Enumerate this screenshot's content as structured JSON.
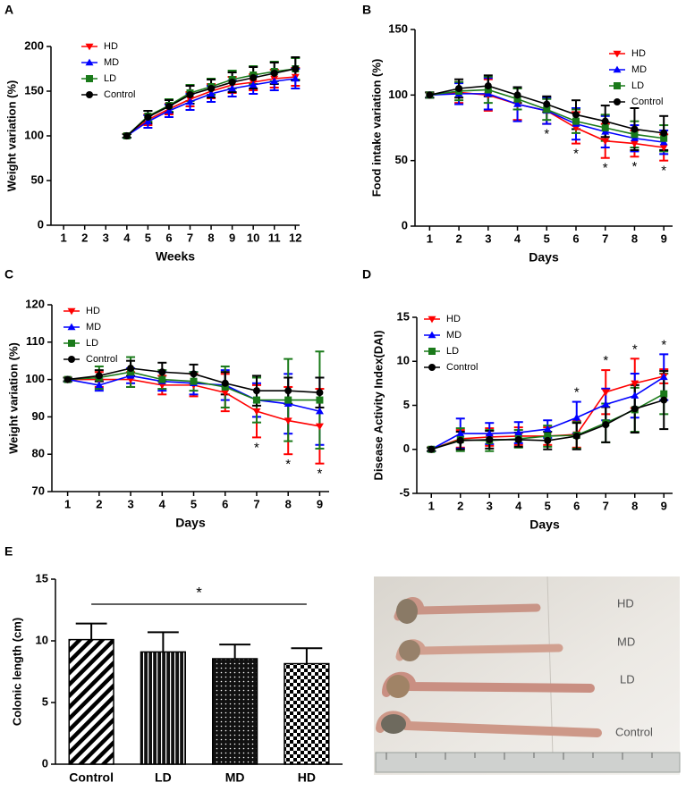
{
  "chart_data": [
    {
      "type": "line",
      "panel": "A",
      "x_label": "Weeks",
      "y_label": "Weight variation (%)",
      "x": [
        4,
        5,
        6,
        7,
        8,
        9,
        10,
        11,
        12
      ],
      "xlim": [
        0.4,
        12.2
      ],
      "xticks": [
        1,
        2,
        3,
        4,
        5,
        6,
        7,
        8,
        9,
        10,
        11,
        12
      ],
      "ylim": [
        0,
        200
      ],
      "yticks": [
        0,
        50,
        100,
        150,
        200
      ],
      "legend": "upper left",
      "series": [
        {
          "name": "HD",
          "color": "#ff0000",
          "marker": "triangle-down",
          "values": [
            100,
            118,
            130,
            141,
            150,
            157,
            160,
            164,
            166
          ],
          "errors": [
            2,
            6,
            6,
            8,
            8,
            9,
            9,
            10,
            10
          ]
        },
        {
          "name": "MD",
          "color": "#0000ff",
          "marker": "triangle-up",
          "values": [
            100,
            116,
            128,
            138,
            147,
            153,
            157,
            161,
            164
          ],
          "errors": [
            2,
            7,
            7,
            9,
            9,
            9,
            10,
            10,
            11
          ]
        },
        {
          "name": "LD",
          "color": "#1a7a1a",
          "marker": "square",
          "values": [
            100,
            122,
            134,
            148,
            155,
            163,
            168,
            172,
            175
          ],
          "errors": [
            2,
            6,
            7,
            9,
            9,
            10,
            10,
            11,
            12
          ]
        },
        {
          "name": "Control",
          "color": "#000000",
          "marker": "circle",
          "values": [
            100,
            121,
            133,
            146,
            153,
            160,
            165,
            170,
            175
          ],
          "errors": [
            2,
            7,
            7,
            10,
            10,
            11,
            12,
            12,
            13
          ]
        }
      ]
    },
    {
      "type": "line",
      "panel": "B",
      "x_label": "Days",
      "y_label": "Food intake variation (%)",
      "x": [
        1,
        2,
        3,
        4,
        5,
        6,
        7,
        8,
        9
      ],
      "xlim": [
        0.5,
        9.3
      ],
      "xticks": [
        1,
        2,
        3,
        4,
        5,
        6,
        7,
        8,
        9
      ],
      "ylim": [
        0,
        150
      ],
      "yticks": [
        0,
        50,
        100,
        150
      ],
      "legend": "upper right",
      "annotation_side": "below",
      "annotations": [
        {
          "x": 5,
          "label": "*"
        },
        {
          "x": 6,
          "label": "*"
        },
        {
          "x": 7,
          "label": "*"
        },
        {
          "x": 8,
          "label": "*"
        },
        {
          "x": 9,
          "label": "*"
        }
      ],
      "series": [
        {
          "name": "HD",
          "color": "#ff0000",
          "marker": "triangle-down",
          "values": [
            100,
            102,
            100,
            93,
            88,
            75,
            65,
            63,
            60
          ],
          "errors": [
            2,
            8,
            12,
            12,
            10,
            12,
            13,
            10,
            10
          ]
        },
        {
          "name": "MD",
          "color": "#0000ff",
          "marker": "triangle-up",
          "values": [
            100,
            101,
            101,
            93,
            88,
            78,
            72,
            67,
            64
          ],
          "errors": [
            2,
            8,
            12,
            13,
            10,
            12,
            12,
            10,
            9
          ]
        },
        {
          "name": "LD",
          "color": "#1a7a1a",
          "marker": "square",
          "values": [
            100,
            103,
            104,
            97,
            89,
            80,
            75,
            70,
            67
          ],
          "errors": [
            2,
            7,
            10,
            8,
            8,
            9,
            10,
            10,
            10
          ]
        },
        {
          "name": "Control",
          "color": "#000000",
          "marker": "circle",
          "values": [
            100,
            105,
            107,
            100,
            93,
            85,
            80,
            74,
            71
          ],
          "errors": [
            2,
            7,
            8,
            6,
            6,
            11,
            12,
            16,
            13
          ]
        }
      ]
    },
    {
      "type": "line",
      "panel": "C",
      "x_label": "Days",
      "y_label": "Weight variation (%)",
      "x": [
        1,
        2,
        3,
        4,
        5,
        6,
        7,
        8,
        9
      ],
      "xlim": [
        0.5,
        9.3
      ],
      "xticks": [
        1,
        2,
        3,
        4,
        5,
        6,
        7,
        8,
        9
      ],
      "ylim": [
        70,
        120
      ],
      "yticks": [
        70,
        80,
        90,
        100,
        110,
        120
      ],
      "legend": "upper left",
      "annotation_side": "below",
      "annotations": [
        {
          "x": 7,
          "label": "*"
        },
        {
          "x": 8,
          "label": "*"
        },
        {
          "x": 9,
          "label": "*"
        }
      ],
      "series": [
        {
          "name": "HD",
          "color": "#ff0000",
          "marker": "triangle-down",
          "values": [
            100,
            100,
            100,
            98.5,
            98.5,
            96.5,
            91.5,
            89,
            87.5
          ],
          "errors": [
            0.5,
            2,
            2,
            2.5,
            3,
            5,
            7,
            9,
            10
          ]
        },
        {
          "name": "MD",
          "color": "#0000ff",
          "marker": "triangle-up",
          "values": [
            100,
            98.5,
            101,
            99.5,
            99,
            98.5,
            94.5,
            93.5,
            91.5
          ],
          "errors": [
            0.5,
            1.5,
            2,
            2.5,
            3,
            4,
            4.5,
            8,
            9
          ]
        },
        {
          "name": "LD",
          "color": "#1a7a1a",
          "marker": "square",
          "values": [
            100,
            100.5,
            102,
            100,
            99.5,
            98,
            94.5,
            94.5,
            94.5
          ],
          "errors": [
            0.5,
            3,
            4,
            2.5,
            2.5,
            5.5,
            6,
            11,
            13
          ]
        },
        {
          "name": "Control",
          "color": "#000000",
          "marker": "circle",
          "values": [
            100,
            101,
            103,
            102,
            101.5,
            99,
            97,
            97,
            96.5
          ],
          "errors": [
            0.5,
            1.5,
            2,
            2.5,
            2.5,
            3,
            4,
            3.5,
            4
          ]
        }
      ]
    },
    {
      "type": "line",
      "panel": "D",
      "x_label": "Days",
      "y_label": "Disease Activity Index(DAI)",
      "x": [
        1,
        2,
        3,
        4,
        5,
        6,
        7,
        8,
        9
      ],
      "xlim": [
        0.5,
        9.3
      ],
      "xticks": [
        1,
        2,
        3,
        4,
        5,
        6,
        7,
        8,
        9
      ],
      "ylim": [
        -5,
        15
      ],
      "yticks": [
        -5,
        0,
        5,
        10,
        15
      ],
      "legend": "upper left",
      "annotation_side": "above",
      "annotations": [
        {
          "x": 6,
          "label": "*"
        },
        {
          "x": 7,
          "label": "*"
        },
        {
          "x": 8,
          "label": "*"
        },
        {
          "x": 9,
          "label": "*"
        }
      ],
      "series": [
        {
          "name": "HD",
          "color": "#ff0000",
          "marker": "triangle-down",
          "values": [
            0,
            1.2,
            1.4,
            1.5,
            1.5,
            1.7,
            6.5,
            7.5,
            8.3
          ],
          "errors": [
            0.2,
            1,
            1,
            1,
            1,
            1.5,
            2.5,
            2.8,
            0.8
          ]
        },
        {
          "name": "MD",
          "color": "#0000ff",
          "marker": "triangle-up",
          "values": [
            0,
            1.8,
            1.8,
            1.9,
            2.3,
            3.6,
            5.1,
            6.1,
            8.2
          ],
          "errors": [
            0.2,
            1.7,
            1.2,
            1.2,
            1,
            1.8,
            1.8,
            2.5,
            2.6
          ]
        },
        {
          "name": "LD",
          "color": "#1a7a1a",
          "marker": "square",
          "values": [
            0,
            1.1,
            1,
            1.2,
            1.5,
            1.6,
            3,
            4.5,
            6.3
          ],
          "errors": [
            0.2,
            1.3,
            1.2,
            1,
            1.2,
            1.5,
            2.2,
            2.5,
            2.3
          ]
        },
        {
          "name": "Control",
          "color": "#000000",
          "marker": "circle",
          "values": [
            0,
            1,
            1.1,
            1.1,
            1,
            1.5,
            2.8,
            4.6,
            5.6
          ],
          "errors": [
            0.2,
            1,
            1,
            0.8,
            1,
            1.5,
            2,
            2.7,
            3.3
          ]
        }
      ]
    },
    {
      "type": "bar",
      "panel": "E",
      "y_label": "Colonic length (cm)",
      "categories": [
        "Control",
        "LD",
        "MD",
        "HD"
      ],
      "values": [
        10.1,
        9.1,
        8.55,
        8.15
      ],
      "errors": [
        1.3,
        1.6,
        1.15,
        1.25
      ],
      "patterns": [
        "diagonal",
        "vertical",
        "dots",
        "checker"
      ],
      "color": "#000000",
      "ylim": [
        0,
        15
      ],
      "yticks": [
        0,
        5,
        10,
        15
      ],
      "significance": {
        "label": "*"
      }
    }
  ],
  "photo": {
    "labels": [
      "HD",
      "MD",
      "LD",
      "Control"
    ]
  }
}
